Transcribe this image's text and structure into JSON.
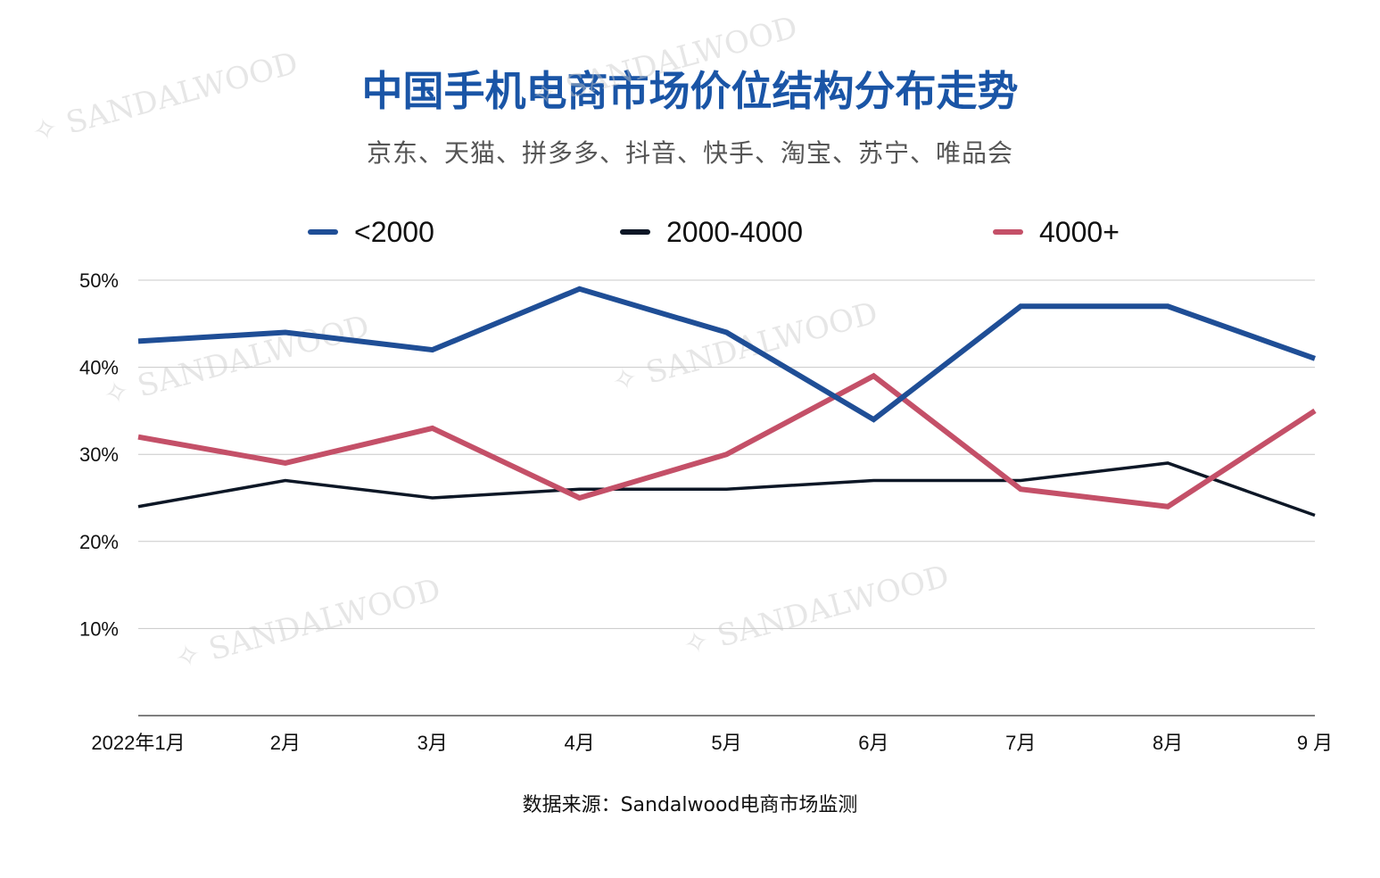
{
  "title": "中国手机电商市场价位结构分布走势",
  "subtitle": "京东、天猫、拼多多、抖音、快手、淘宝、苏宁、唯品会",
  "source": "数据来源：Sandalwood电商市场监测",
  "watermark": "SANDALWOOD",
  "chart_data": {
    "type": "line",
    "categories": [
      "2022年1月",
      "2月",
      "3月",
      "4月",
      "5月",
      "6月",
      "7月",
      "8月",
      "9 月"
    ],
    "series": [
      {
        "name": "<2000",
        "color": "#1f4e96",
        "values": [
          43,
          44,
          42,
          49,
          44,
          34,
          47,
          47,
          41
        ]
      },
      {
        "name": "2000-4000",
        "color": "#0d1726",
        "values": [
          24,
          27,
          25,
          26,
          26,
          27,
          27,
          29,
          23
        ]
      },
      {
        "name": "4000+",
        "color": "#c45068",
        "values": [
          32,
          29,
          33,
          25,
          30,
          39,
          26,
          24,
          35
        ]
      }
    ],
    "yticks": [
      "10%",
      "20%",
      "30%",
      "40%",
      "50%"
    ],
    "ylim": [
      0,
      50
    ],
    "grid": true,
    "legend_position": "top"
  }
}
